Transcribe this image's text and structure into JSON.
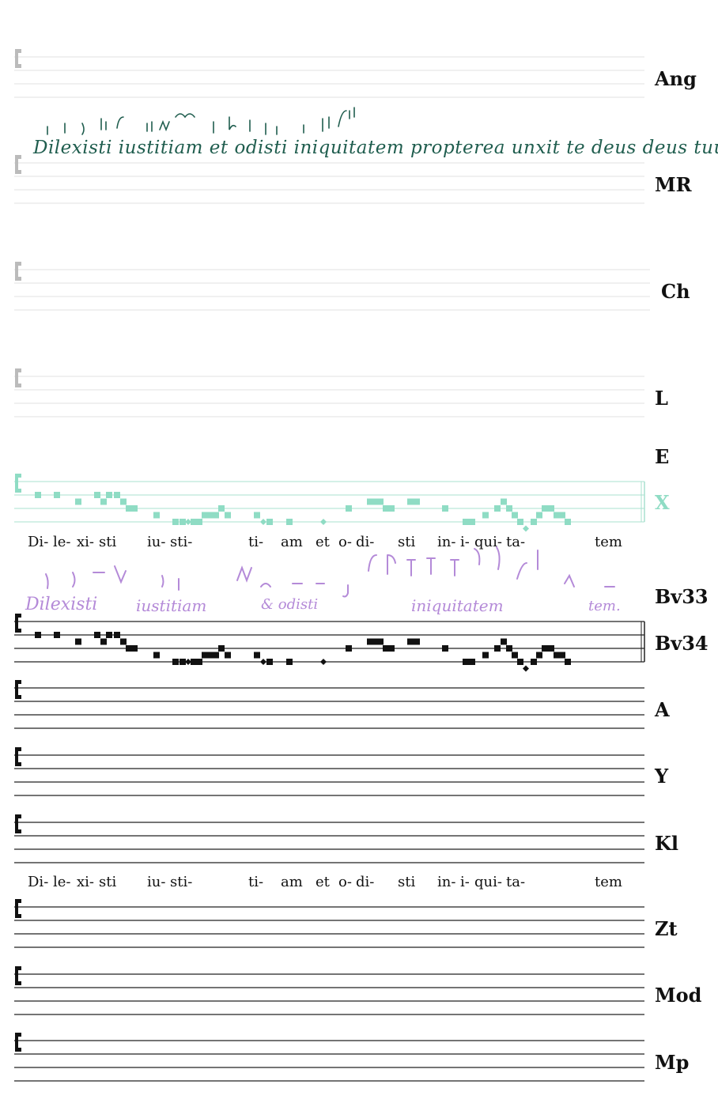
{
  "incipit": "Dilexisti iustitiam et odisti iniquitatem",
  "colors": {
    "staff_faint": "#e2e2e2",
    "staff_dark": "#222222",
    "staff_x": "#a8e0cf",
    "neume_x": "#8fdcc4",
    "neume_main": "#111111",
    "clef_gray": "#bbbbbb",
    "mr_ink": "#1f5d4e",
    "bv_ink": "#b48ad8"
  },
  "staves": [
    {
      "siglum": "Ang",
      "style": "faint"
    },
    {
      "siglum": "MR",
      "style": "faint"
    },
    {
      "siglum": "Ch",
      "style": "faint"
    },
    {
      "siglum": "L",
      "style": "faint"
    },
    {
      "siglum": "E",
      "style": "label-only"
    },
    {
      "siglum": "X",
      "style": "teal"
    },
    {
      "siglum": "Bv33",
      "style": "label-only"
    },
    {
      "siglum": "Bv34",
      "style": "dark"
    },
    {
      "siglum": "A",
      "style": "dark"
    },
    {
      "siglum": "Y",
      "style": "dark"
    },
    {
      "siglum": "Kl",
      "style": "dark"
    },
    {
      "siglum": "Zt",
      "style": "dark"
    },
    {
      "siglum": "Mod",
      "style": "dark"
    },
    {
      "siglum": "Mp",
      "style": "dark"
    }
  ],
  "lyrics": [
    "Di-",
    "le-",
    "xi-",
    "sti",
    "iu-",
    "sti-",
    "ti-",
    "am",
    "et",
    "o-",
    "di-",
    "sti",
    "in-",
    "i-",
    "qui-",
    "ta-",
    "tem"
  ],
  "manuscript_text": {
    "mr": "Dilexisti iustitiam et odisti iniquitatem propterea unxit te deus deus tuus",
    "bv33": [
      "Dilexisti",
      "iustitiam",
      "& odisti",
      "iniquitatem",
      "tem."
    ]
  },
  "melody_pitches": [
    1,
    1,
    0,
    1,
    0,
    1,
    1,
    0,
    -1,
    -1,
    -2,
    -3,
    -3,
    -3,
    -3,
    -3,
    -2,
    -2,
    -2,
    -1,
    -2,
    -2,
    -3,
    -3,
    -3,
    -3,
    -1,
    0,
    0,
    0,
    -1,
    -1,
    0,
    0,
    -1,
    -3,
    -3,
    -2,
    -1,
    0,
    -1,
    -2,
    -3,
    -4,
    -3,
    -2,
    -1,
    -1,
    -2,
    -2,
    -3
  ]
}
